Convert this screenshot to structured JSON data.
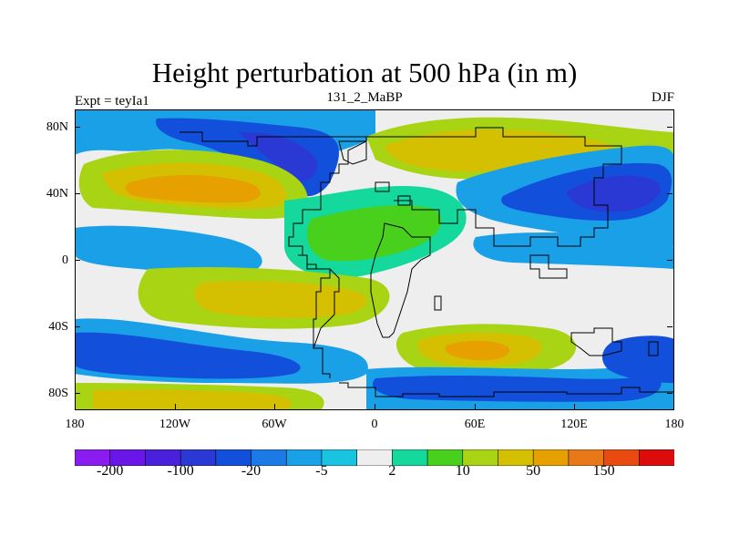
{
  "title": "Height perturbation at 500 hPa (in m)",
  "left_label": "Expt = teyIa1",
  "center_label": "131_2_MaBP",
  "right_label": "DJF",
  "lat_ticks": [
    "80N",
    "40N",
    "0",
    "40S",
    "80S"
  ],
  "lon_ticks": [
    "180",
    "120W",
    "60W",
    "0",
    "60E",
    "120E",
    "180"
  ],
  "colorbar": {
    "colors": [
      "#8a1cf0",
      "#6a16e8",
      "#4a20dc",
      "#2a38d4",
      "#1250dc",
      "#1c7ae6",
      "#1aa0e6",
      "#18c4e0",
      "#eeeeee",
      "#14d89c",
      "#48d01c",
      "#a8d414",
      "#d4c000",
      "#e6a000",
      "#e87818",
      "#e84a10",
      "#dc0c0c"
    ],
    "labels": [
      "-200",
      "-100",
      "-20",
      "-5",
      "2",
      "10",
      "50",
      "150"
    ]
  },
  "palette": {
    "background": "#eeeeee",
    "neg_extreme": "#4a20dc",
    "neg_strong": "#2a38d4",
    "neg_mid": "#1c7ae6",
    "neg_weak": "#18c4e0",
    "pos_weak": "#14d89c",
    "pos_mid": "#48d01c",
    "pos_strong": "#a8d414",
    "pos_high": "#d4c000",
    "pos_peak": "#e6a000"
  }
}
